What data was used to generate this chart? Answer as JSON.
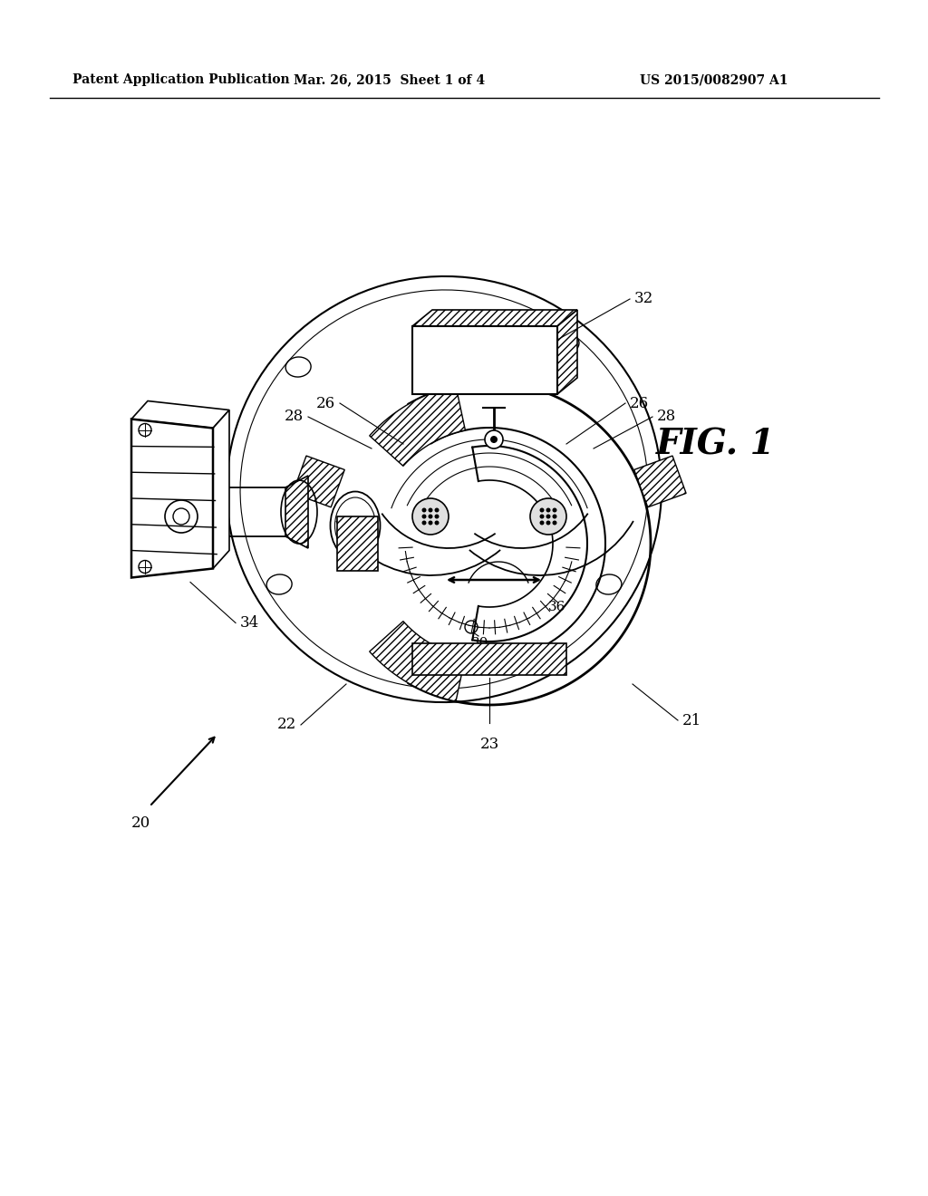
{
  "background_color": "#ffffff",
  "header_left": "Patent Application Publication",
  "header_center": "Mar. 26, 2015  Sheet 1 of 4",
  "header_right": "US 2015/0082907 A1",
  "fig_label": "FIG. 1",
  "line_color": "#000000",
  "line_width": 1.2
}
